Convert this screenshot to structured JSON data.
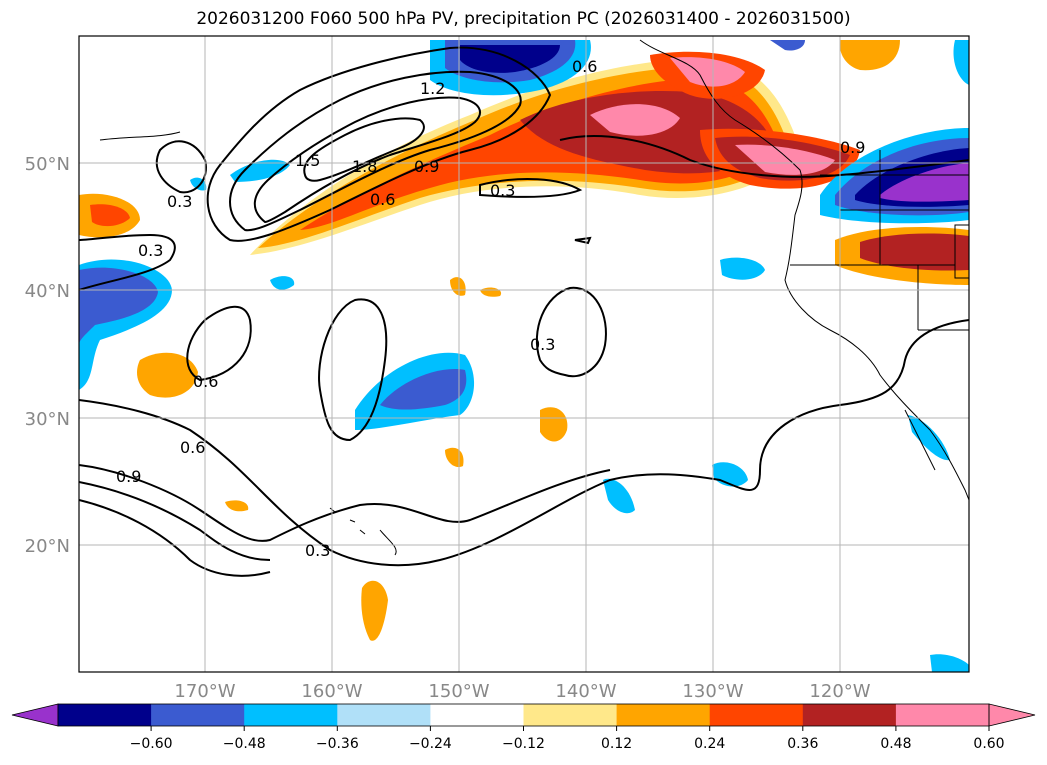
{
  "title": "2026031200 F060 500 hPa PV, precipitation PC (2026031400 - 2026031500)",
  "map": {
    "lat_labels": [
      "50°N",
      "40°N",
      "30°N",
      "20°N"
    ],
    "lon_labels": [
      "170°W",
      "160°W",
      "150°W",
      "140°W",
      "130°W",
      "120°W"
    ]
  },
  "contours": {
    "labels": [
      "0.6",
      "1.2",
      "1.5",
      "1.8",
      "0.9",
      "0.6",
      "0.3",
      "0.9",
      "0.3",
      "0.3",
      "0.6",
      "0.6",
      "0.9",
      "0.3",
      "0.3"
    ]
  },
  "colorbar": {
    "colors": [
      "#9932cc",
      "#00008b",
      "#3b5bd0",
      "#00bfff",
      "#b0e0f8",
      "#ffffff",
      "#ffe88a",
      "#ffa500",
      "#ff4500",
      "#b22222",
      "#ff88aa",
      "#ff88aa"
    ],
    "tick_labels": [
      "−0.60",
      "−0.48",
      "−0.36",
      "−0.24",
      "−0.12",
      "0.12",
      "0.24",
      "0.36",
      "0.48",
      "0.60"
    ]
  }
}
